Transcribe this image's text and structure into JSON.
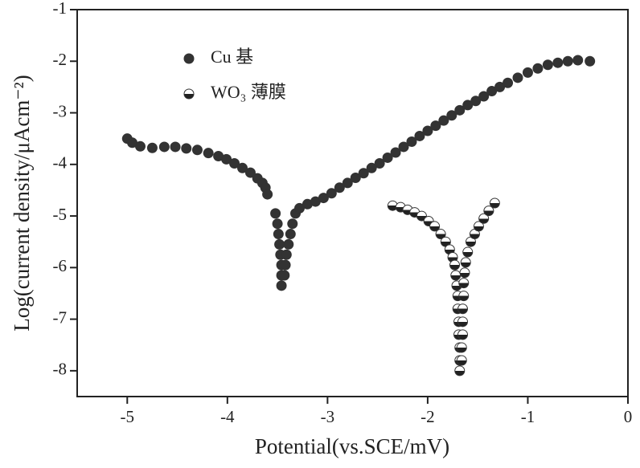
{
  "chart_data": {
    "type": "scatter",
    "xlabel": "Potential(vs.SCE/mV)",
    "ylabel": "Log(current density/μAcm⁻²)",
    "xlim": [
      -5.5,
      0
    ],
    "ylim": [
      -8.5,
      -1
    ],
    "xticks": [
      -5,
      -4,
      -3,
      -2,
      -1,
      0
    ],
    "yticks": [
      -1,
      -2,
      -3,
      -4,
      -5,
      -6,
      -7,
      -8
    ],
    "legend": "upper left",
    "series": [
      {
        "name": "Cu 基",
        "color": "#333333",
        "marker": "filled",
        "x": [
          -5.0,
          -4.95,
          -4.87,
          -4.75,
          -4.63,
          -4.52,
          -4.41,
          -4.3,
          -4.19,
          -4.09,
          -4.01,
          -3.93,
          -3.85,
          -3.77,
          -3.7,
          -3.65,
          -3.62,
          -3.6,
          -3.52,
          -3.5,
          -3.49,
          -3.48,
          -3.47,
          -3.46,
          -3.46,
          -3.46,
          -3.43,
          -3.42,
          -3.41,
          -3.39,
          -3.37,
          -3.35,
          -3.32,
          -3.28,
          -3.2,
          -3.12,
          -3.04,
          -2.96,
          -2.88,
          -2.8,
          -2.72,
          -2.64,
          -2.56,
          -2.48,
          -2.4,
          -2.32,
          -2.24,
          -2.16,
          -2.08,
          -2.0,
          -1.92,
          -1.84,
          -1.76,
          -1.68,
          -1.6,
          -1.52,
          -1.44,
          -1.36,
          -1.28,
          -1.2,
          -1.1,
          -1.0,
          -0.9,
          -0.8,
          -0.7,
          -0.6,
          -0.5,
          -0.38
        ],
        "values": [
          -3.5,
          -3.58,
          -3.65,
          -3.68,
          -3.66,
          -3.66,
          -3.69,
          -3.72,
          -3.78,
          -3.84,
          -3.9,
          -3.98,
          -4.07,
          -4.16,
          -4.27,
          -4.36,
          -4.45,
          -4.58,
          -4.95,
          -5.15,
          -5.35,
          -5.55,
          -5.75,
          -5.95,
          -6.15,
          -6.35,
          -6.15,
          -5.95,
          -5.75,
          -5.55,
          -5.35,
          -5.15,
          -4.95,
          -4.85,
          -4.77,
          -4.72,
          -4.65,
          -4.56,
          -4.45,
          -4.36,
          -4.26,
          -4.17,
          -4.07,
          -3.98,
          -3.87,
          -3.77,
          -3.66,
          -3.56,
          -3.45,
          -3.35,
          -3.25,
          -3.15,
          -3.05,
          -2.95,
          -2.85,
          -2.77,
          -2.68,
          -2.58,
          -2.5,
          -2.42,
          -2.32,
          -2.22,
          -2.14,
          -2.07,
          -2.03,
          -2.0,
          -1.98,
          -2.0
        ]
      },
      {
        "name": "WO₃ 薄膜",
        "color": "#333333",
        "marker": "half",
        "x": [
          -2.35,
          -2.27,
          -2.2,
          -2.13,
          -2.06,
          -1.99,
          -1.93,
          -1.87,
          -1.82,
          -1.78,
          -1.75,
          -1.73,
          -1.72,
          -1.71,
          -1.7,
          -1.7,
          -1.69,
          -1.69,
          -1.68,
          -1.68,
          -1.68,
          -1.66,
          -1.66,
          -1.65,
          -1.65,
          -1.65,
          -1.64,
          -1.64,
          -1.63,
          -1.62,
          -1.6,
          -1.57,
          -1.53,
          -1.49,
          -1.44,
          -1.39,
          -1.33
        ],
        "values": [
          -4.8,
          -4.83,
          -4.88,
          -4.93,
          -5.0,
          -5.1,
          -5.2,
          -5.35,
          -5.5,
          -5.65,
          -5.8,
          -5.95,
          -6.15,
          -6.35,
          -6.55,
          -6.8,
          -7.05,
          -7.3,
          -7.55,
          -7.8,
          -8.0,
          -7.8,
          -7.55,
          -7.3,
          -7.05,
          -6.8,
          -6.55,
          -6.3,
          -6.1,
          -5.9,
          -5.7,
          -5.5,
          -5.35,
          -5.2,
          -5.05,
          -4.9,
          -4.75
        ]
      }
    ]
  }
}
